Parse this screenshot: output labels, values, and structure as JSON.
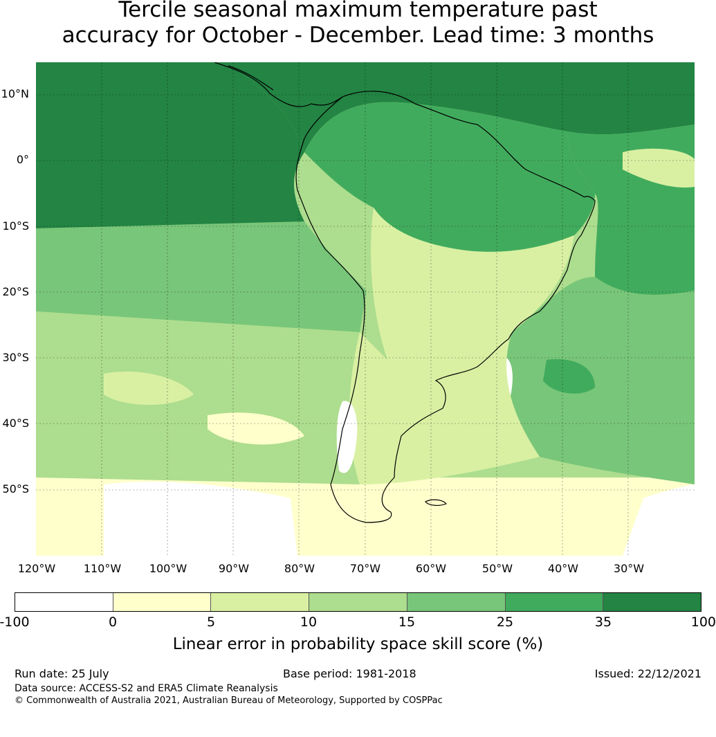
{
  "title": {
    "line1": "Tercile seasonal maximum temperature past",
    "line2": "accuracy for October - December. Lead time: 3 months"
  },
  "map": {
    "lat_labels": [
      "10°N",
      "0°",
      "10°S",
      "20°S",
      "30°S",
      "40°S",
      "50°S"
    ],
    "lon_labels": [
      "120°W",
      "110°W",
      "100°W",
      "90°W",
      "80°W",
      "70°W",
      "60°W",
      "50°W",
      "40°W",
      "30°W"
    ],
    "extent": {
      "lon": [
        -120,
        -20
      ],
      "lat": [
        -60,
        15
      ]
    },
    "regions": [
      {
        "name": "equatorial eastern Pacific",
        "class_index": 7
      },
      {
        "name": "Caribbean and northern South America",
        "class_index": 6
      },
      {
        "name": "Amazon basin",
        "class_index": 4
      },
      {
        "name": "tropical Atlantic",
        "class_index": 5
      },
      {
        "name": "southeast Pacific",
        "class_index": 4
      },
      {
        "name": "southern South America",
        "class_index": 3
      },
      {
        "name": "Southern Ocean south of 50°S",
        "class_index": 1
      }
    ]
  },
  "colorbar": {
    "ticks": [
      "-100",
      "0",
      "5",
      "10",
      "15",
      "25",
      "35",
      "100"
    ],
    "colors": [
      "#ffffff",
      "#ffffcc",
      "#d9f0a3",
      "#addd8e",
      "#78c679",
      "#41ab5d",
      "#238443"
    ],
    "label": "Linear error in probability space skill score (%)"
  },
  "footer": {
    "run_date": "Run date: 25 July",
    "base_period": "Base period: 1981-2018",
    "issued": "Issued: 22/12/2021",
    "data_source": "Data source: ACCESS-S2 and ERA5 Climate Reanalysis",
    "copyright": "© Commonwealth of Australia 2021, Australian Bureau of Meteorology, Supported by COSPPac"
  }
}
